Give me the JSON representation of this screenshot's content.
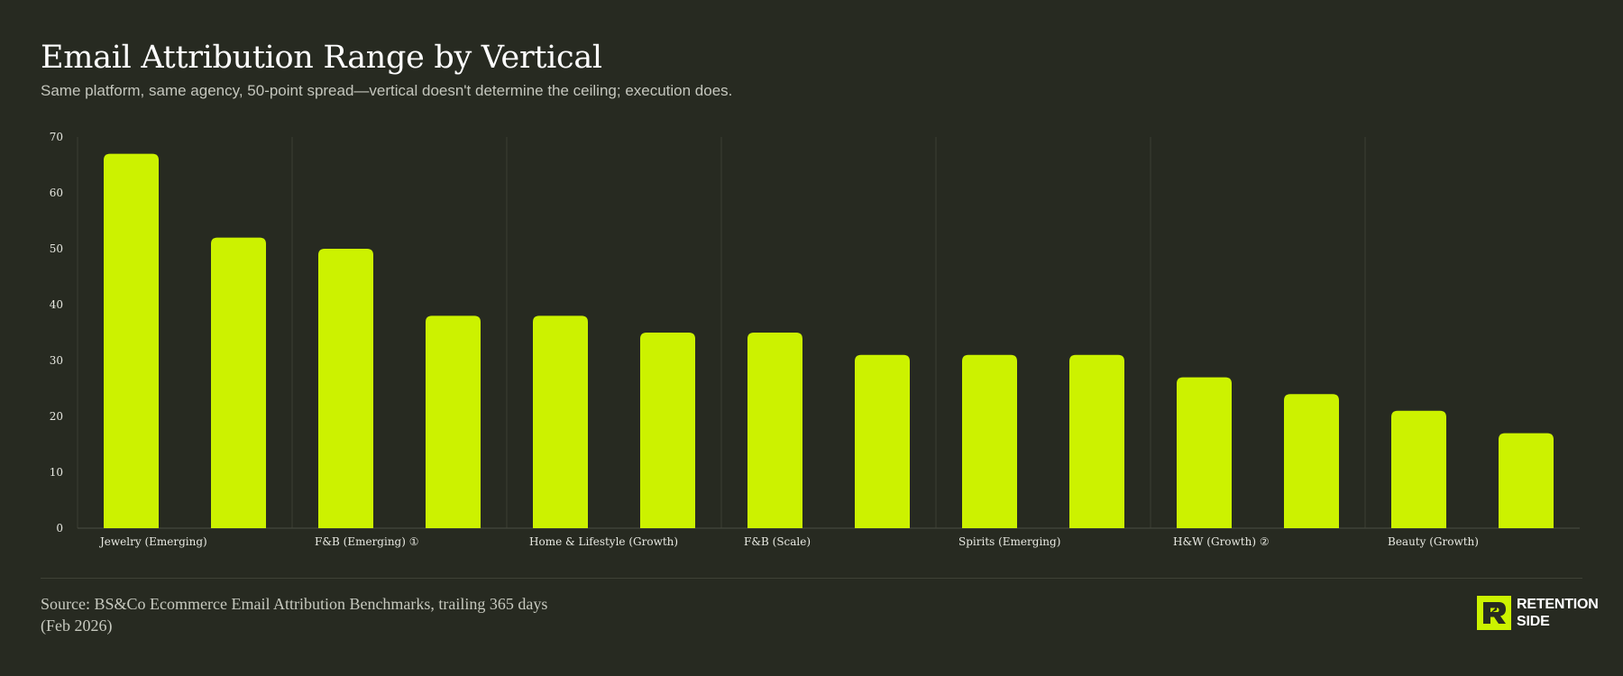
{
  "header": {
    "title": "Email Attribution Range by Vertical",
    "subtitle": "Same platform, same agency, 50-point spread—vertical doesn't determine the ceiling; execution does."
  },
  "footer": {
    "source_line1": "Source: BS&Co Ecommerce Email Attribution Benchmarks, trailing 365 days",
    "source_line2": "(Feb 2026)"
  },
  "brand": {
    "line1": "RETENTION",
    "line2": "SIDE",
    "logo_icon": "retention-side-logo-icon"
  },
  "colors": {
    "background": "#272a21",
    "bar": "#ccf200",
    "text": "#ffffff",
    "muted_text": "#c4c6bd"
  },
  "chart_data": {
    "type": "bar",
    "title": "Email Attribution Range by Vertical",
    "subtitle": "Same platform, same agency, 50-point spread—vertical doesn't determine the ceiling; execution does.",
    "xlabel": "",
    "ylabel": "",
    "ylim": [
      0,
      70
    ],
    "yticks": [
      0,
      10,
      20,
      30,
      40,
      50,
      60,
      70
    ],
    "grid": "vertical",
    "categories": [
      "Jewelry (Emerging)",
      "",
      "F&B (Emerging) ①",
      "",
      "Home & Lifestyle (Growth)",
      "",
      "F&B (Scale)",
      "",
      "Spirits (Emerging)",
      "",
      "H&W (Growth) ②",
      "",
      "Beauty (Growth)",
      ""
    ],
    "values": [
      67,
      52,
      50,
      38,
      38,
      35,
      35,
      31,
      31,
      31,
      27,
      24,
      21,
      17
    ]
  }
}
